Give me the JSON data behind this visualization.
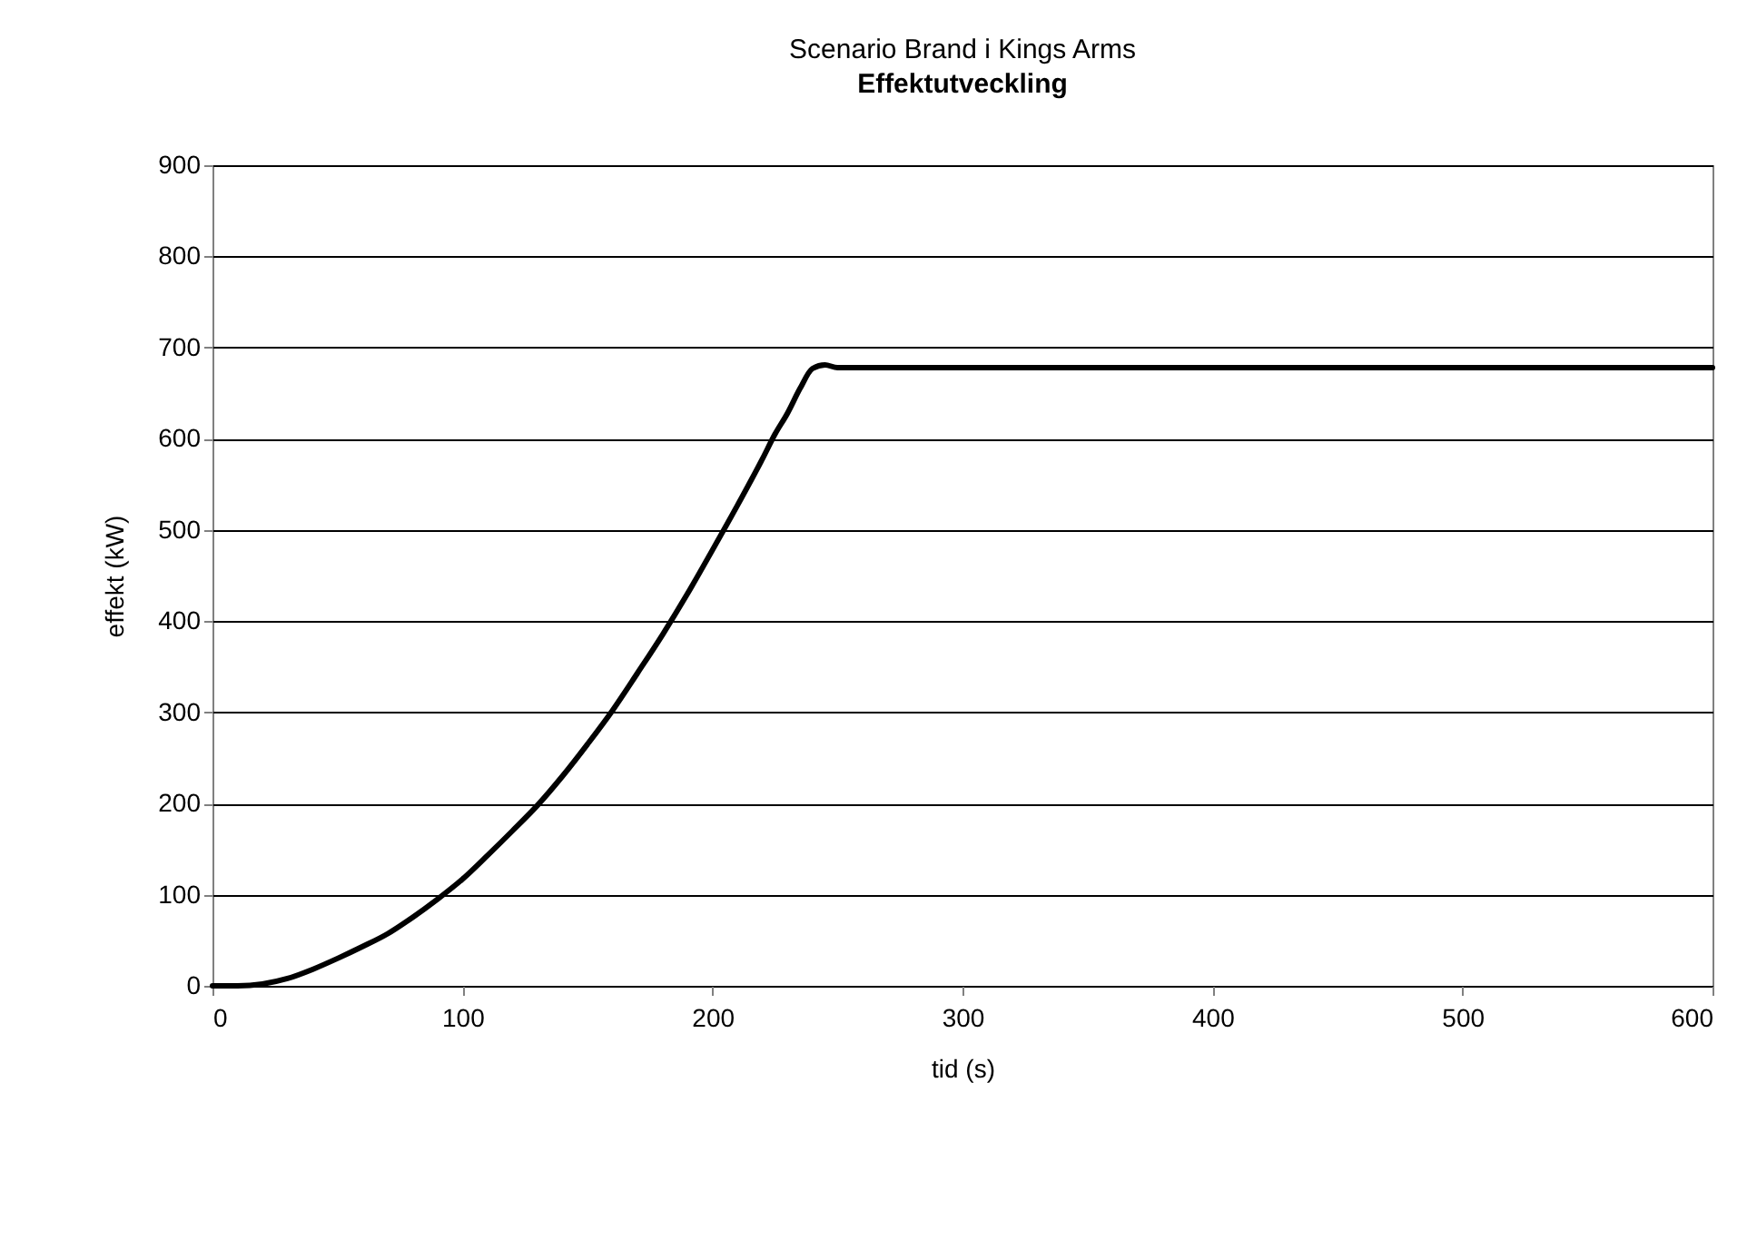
{
  "chart_data": {
    "type": "line",
    "title": "Scenario Brand i Kings Arms",
    "subtitle": "Effektutveckling",
    "xlabel": "tid (s)",
    "ylabel": "effekt (kW)",
    "x": [
      0,
      10,
      20,
      30,
      40,
      50,
      60,
      70,
      80,
      90,
      100,
      110,
      120,
      130,
      140,
      150,
      160,
      170,
      180,
      190,
      200,
      210,
      220,
      225,
      230,
      235,
      240,
      245,
      250,
      600
    ],
    "series": [
      {
        "color": "#000000",
        "values": [
          0,
          0,
          2,
          8,
          18,
          30,
          43,
          57,
          75,
          95,
          117,
          143,
          170,
          198,
          230,
          265,
          302,
          343,
          385,
          430,
          478,
          527,
          578,
          605,
          628,
          655,
          677,
          681,
          678,
          678
        ]
      }
    ],
    "xlim": [
      0,
      600
    ],
    "xticks": [
      0,
      100,
      200,
      300,
      400,
      500,
      600
    ],
    "ylim": [
      0,
      900
    ],
    "yticks": [
      0,
      100,
      200,
      300,
      400,
      500,
      600,
      700,
      800,
      900
    ],
    "grid": "y",
    "legend": false,
    "marker": "none",
    "line_style": "solid"
  }
}
